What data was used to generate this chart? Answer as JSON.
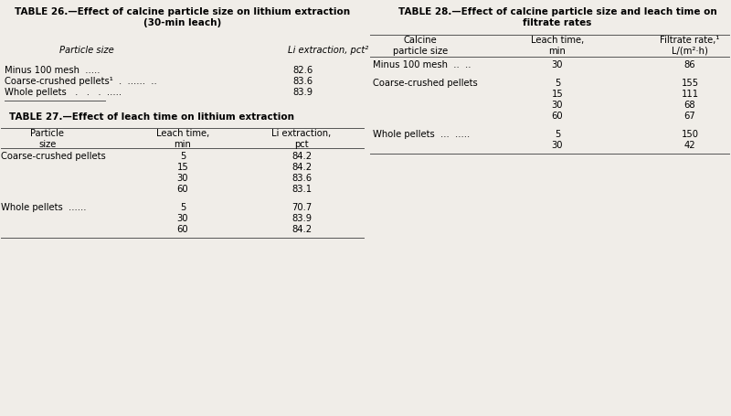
{
  "bg_color": "#f0ede8",
  "table26": {
    "title_line1": "TABLE 26.—Effect of calcine particle size on lithium extraction",
    "title_line2": "(30-min leach)",
    "col_header1": "Particle size",
    "col_header2": "Li extraction, pct²",
    "rows": [
      [
        "Minus 100 mesh  .....",
        ".....",
        "82.6"
      ],
      [
        "Coarse-crushed pellets¹  .  ......  ..",
        "",
        "83.6"
      ],
      [
        "Whole pellets   .   .   .  .....",
        "",
        "83.9"
      ]
    ]
  },
  "table27": {
    "title": "TABLE 27.—Effect of leach time on lithium extraction",
    "col_headers": [
      "Particle\nsize",
      "Leach time,\nmin",
      "Li extraction,\npct"
    ],
    "row_groups": [
      {
        "label": "Coarse-crushed pellets",
        "rows": [
          [
            "5",
            "84.2"
          ],
          [
            "15",
            "84.2"
          ],
          [
            "30",
            "83.6"
          ],
          [
            "60",
            "83.1"
          ]
        ]
      },
      {
        "label": "Whole pellets  ......",
        "rows": [
          [
            "5",
            "70.7"
          ],
          [
            "30",
            "83.9"
          ],
          [
            "60",
            "84.2"
          ]
        ]
      }
    ]
  },
  "table28": {
    "title_line1": "TABLE 28.—Effect of calcine particle size and leach time on",
    "title_line2": "filtrate rates",
    "col_headers": [
      "Calcine\nparticle size",
      "Leach time,\nmin",
      "Filtrate rate,¹\nL/(m²·h)"
    ],
    "row_groups": [
      {
        "label": "Minus 100 mesh  ..  ..",
        "rows": [
          [
            "30",
            "86"
          ]
        ]
      },
      {
        "label": "Coarse-crushed pellets",
        "rows": [
          [
            "5",
            "155"
          ],
          [
            "15",
            "111"
          ],
          [
            "30",
            "68"
          ],
          [
            "60",
            "67"
          ]
        ]
      },
      {
        "label": "Whole pellets  ...  .....",
        "rows": [
          [
            "5",
            "150"
          ],
          [
            "30",
            "42"
          ]
        ]
      }
    ]
  }
}
